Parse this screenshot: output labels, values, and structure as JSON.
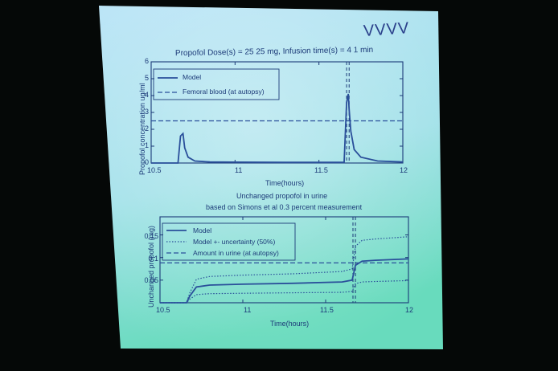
{
  "scene": {
    "corner_mark": "VVVV",
    "colors": {
      "screen_top": "#a8ddf0",
      "screen_bottom": "#6fdcc4",
      "ink": "#1c3a78",
      "curve": "#2a4f9a",
      "background": "#050807"
    }
  },
  "top_chart": {
    "title": "Propofol Dose(s) = 25  25 mg,   Infusion time(s) = 4  1 min",
    "ylabel": "Propofol concentration ug/ml",
    "xlabel": "Time(hours)",
    "xticks": [
      "10.5",
      "11",
      "11.5",
      "12"
    ],
    "yticks": [
      "0",
      "1",
      "2",
      "3",
      "4",
      "5",
      "6"
    ],
    "legend": [
      "Model",
      "Femoral blood (at autopsy)"
    ]
  },
  "bottom_chart": {
    "title_line1": "Unchanged propofol in urine",
    "title_line2": "based on Simons et al 0.3 percent measurement",
    "ylabel": "Unchanged propofol (mg)",
    "xlabel": "Time(hours)",
    "xticks": [
      "10.5",
      "11",
      "11.5",
      "12"
    ],
    "yticks": [
      "0.05",
      "0.1",
      "0.15"
    ],
    "legend": [
      "Model",
      "Model +- uncertainty (50%)",
      "Amount in urine (at autopsy)"
    ]
  },
  "chart_data": [
    {
      "type": "line",
      "title": "Propofol Dose(s) = 25  25 mg,   Infusion time(s) = 4  1 min",
      "xlabel": "Time(hours)",
      "ylabel": "Propofol concentration ug/ml",
      "xlim": [
        10.5,
        12
      ],
      "ylim": [
        0,
        6
      ],
      "legend_position": "top-left",
      "series": [
        {
          "name": "Model",
          "style": "solid",
          "x": [
            10.5,
            10.66,
            10.675,
            10.69,
            10.7,
            10.72,
            10.76,
            10.85,
            11.0,
            11.3,
            11.65,
            11.665,
            11.675,
            11.68,
            11.69,
            11.71,
            11.75,
            11.85,
            12.0
          ],
          "y": [
            0,
            0,
            1.6,
            1.75,
            0.9,
            0.35,
            0.12,
            0.06,
            0.05,
            0.04,
            0.04,
            3.6,
            4.1,
            3.2,
            1.9,
            0.8,
            0.35,
            0.12,
            0.06
          ]
        },
        {
          "name": "Femoral blood (at autopsy)",
          "style": "dashed",
          "x": [
            10.5,
            12
          ],
          "y": [
            2.5,
            2.5
          ]
        }
      ],
      "vlines": [
        11.665,
        11.68
      ]
    },
    {
      "type": "line",
      "title": "Unchanged propofol in urine based on Simons et al 0.3 percent measurement",
      "xlabel": "Time(hours)",
      "ylabel": "Unchanged propofol (mg)",
      "xlim": [
        10.5,
        12
      ],
      "ylim": [
        0,
        0.19
      ],
      "legend_position": "top-left",
      "series": [
        {
          "name": "Model",
          "style": "solid",
          "x": [
            10.5,
            10.66,
            10.68,
            10.72,
            10.8,
            11.0,
            11.3,
            11.6,
            11.66,
            11.68,
            11.72,
            11.8,
            12.0
          ],
          "y": [
            0,
            0,
            0.015,
            0.035,
            0.039,
            0.041,
            0.043,
            0.046,
            0.05,
            0.083,
            0.092,
            0.094,
            0.097
          ]
        },
        {
          "name": "Model +- uncertainty (50%)",
          "style": "dotted",
          "x": [
            10.5,
            10.66,
            10.68,
            10.72,
            10.8,
            11.0,
            11.3,
            11.6,
            11.66,
            11.68,
            11.72,
            11.8,
            12.0
          ],
          "y": [
            0,
            0,
            0.022,
            0.052,
            0.058,
            0.061,
            0.064,
            0.069,
            0.075,
            0.125,
            0.138,
            0.141,
            0.146
          ]
        },
        {
          "style": "dotted",
          "x": [
            10.5,
            10.66,
            10.68,
            10.72,
            10.8,
            11.0,
            11.3,
            11.6,
            11.66,
            11.68,
            11.72,
            11.8,
            12.0
          ],
          "y": [
            0,
            0,
            0.008,
            0.018,
            0.02,
            0.021,
            0.022,
            0.023,
            0.025,
            0.042,
            0.046,
            0.047,
            0.049
          ]
        },
        {
          "name": "Amount in urine (at autopsy)",
          "style": "dashed",
          "x": [
            10.5,
            12
          ],
          "y": [
            0.088,
            0.088
          ]
        }
      ],
      "vlines": [
        11.665,
        11.68
      ]
    }
  ]
}
